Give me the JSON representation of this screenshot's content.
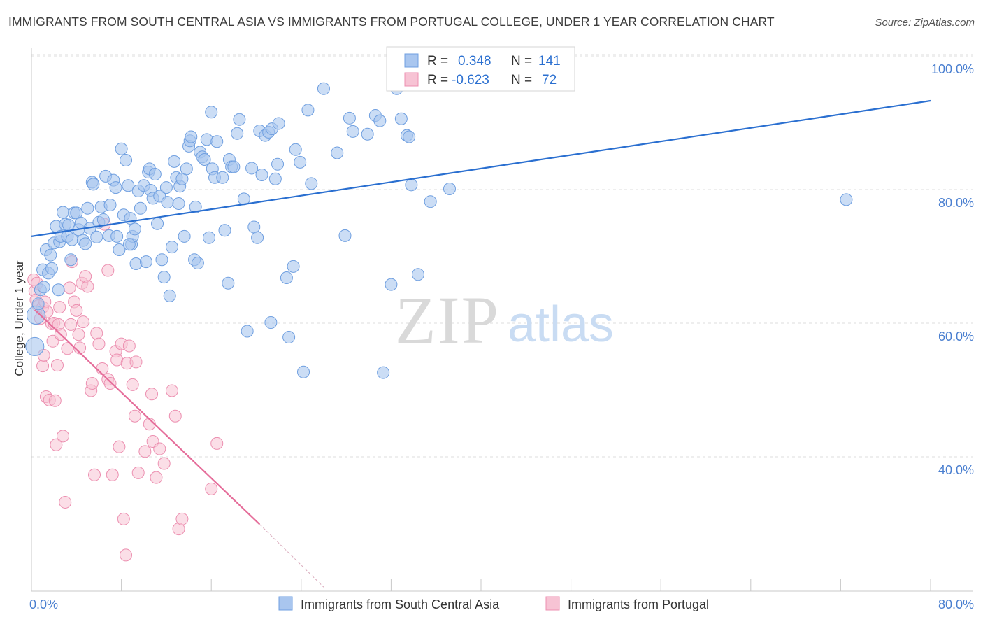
{
  "title": "IMMIGRANTS FROM SOUTH CENTRAL ASIA VS IMMIGRANTS FROM PORTUGAL COLLEGE, UNDER 1 YEAR CORRELATION CHART",
  "source": "Source: ZipAtlas.com",
  "watermark": {
    "zip": "ZIP",
    "atlas": "atlas"
  },
  "colors": {
    "blue_fill": "#a9c6ef",
    "blue_stroke": "#6f9fe0",
    "blue_line": "#2a6fd0",
    "pink_fill": "#f7c3d4",
    "pink_stroke": "#ec8fb0",
    "pink_line": "#e56d9a",
    "grid": "#dcdcdc",
    "tick_label": "#4a7fd0"
  },
  "legend": {
    "rows": [
      {
        "r_label": "R =",
        "r_value": "0.348",
        "n_label": "N =",
        "n_value": "141"
      },
      {
        "r_label": "R =",
        "r_value": "-0.623",
        "n_label": "N =",
        "n_value": "72"
      }
    ]
  },
  "chart_data": {
    "type": "scatter",
    "title": "IMMIGRANTS FROM SOUTH CENTRAL ASIA VS IMMIGRANTS FROM PORTUGAL COLLEGE, UNDER 1 YEAR CORRELATION CHART",
    "xlabel": "",
    "ylabel": "College, Under 1 year",
    "xlim": [
      0,
      80
    ],
    "ylim": [
      20,
      103
    ],
    "x_ticks": [
      "0.0%",
      "80.0%"
    ],
    "y_ticks": [
      {
        "value": 40,
        "label": "40.0%"
      },
      {
        "value": 60,
        "label": "60.0%"
      },
      {
        "value": 80,
        "label": "80.0%"
      },
      {
        "value": 100,
        "label": "100.0%"
      }
    ],
    "grid": true,
    "legend_position": "top-center",
    "series": [
      {
        "name": "Immigrants from South Central Asia",
        "color": "#a9c6ef",
        "r": 0.348,
        "n": 141,
        "trend": {
          "x": [
            0,
            80
          ],
          "y": [
            73.0,
            93.3
          ]
        },
        "points": [
          [
            0.3,
            56.5
          ],
          [
            0.4,
            61.2
          ],
          [
            0.6,
            62.9
          ],
          [
            0.8,
            65.0
          ],
          [
            1.0,
            68.0
          ],
          [
            1.1,
            65.4
          ],
          [
            1.3,
            71.0
          ],
          [
            1.5,
            67.5
          ],
          [
            1.7,
            70.2
          ],
          [
            1.8,
            68.2
          ],
          [
            2.0,
            72.0
          ],
          [
            2.2,
            74.5
          ],
          [
            2.4,
            65.0
          ],
          [
            2.5,
            72.2
          ],
          [
            2.6,
            73.0
          ],
          [
            2.8,
            76.6
          ],
          [
            3.0,
            74.8
          ],
          [
            3.2,
            73.0
          ],
          [
            3.3,
            74.7
          ],
          [
            3.5,
            69.5
          ],
          [
            3.6,
            72.5
          ],
          [
            3.8,
            76.5
          ],
          [
            4.0,
            76.5
          ],
          [
            4.2,
            74.0
          ],
          [
            4.4,
            75.0
          ],
          [
            4.6,
            72.4
          ],
          [
            4.8,
            71.9
          ],
          [
            5.0,
            77.2
          ],
          [
            5.2,
            74.2
          ],
          [
            5.4,
            81.1
          ],
          [
            5.5,
            80.8
          ],
          [
            5.8,
            72.9
          ],
          [
            6.0,
            75.1
          ],
          [
            6.2,
            77.4
          ],
          [
            6.4,
            75.5
          ],
          [
            6.6,
            82.0
          ],
          [
            6.9,
            73.1
          ],
          [
            7.0,
            77.7
          ],
          [
            7.3,
            81.4
          ],
          [
            7.5,
            80.3
          ],
          [
            7.6,
            73.0
          ],
          [
            7.8,
            71.0
          ],
          [
            8.0,
            86.1
          ],
          [
            8.2,
            76.2
          ],
          [
            8.4,
            84.4
          ],
          [
            8.6,
            80.6
          ],
          [
            8.8,
            75.7
          ],
          [
            8.9,
            71.8
          ],
          [
            9.0,
            73.0
          ],
          [
            9.2,
            74.1
          ],
          [
            9.3,
            68.9
          ],
          [
            9.5,
            79.8
          ],
          [
            9.7,
            77.2
          ],
          [
            10.0,
            80.6
          ],
          [
            10.2,
            69.2
          ],
          [
            10.4,
            82.6
          ],
          [
            10.5,
            83.1
          ],
          [
            10.6,
            79.9
          ],
          [
            10.8,
            78.7
          ],
          [
            11.0,
            82.3
          ],
          [
            11.2,
            74.9
          ],
          [
            11.4,
            79.0
          ],
          [
            11.6,
            69.5
          ],
          [
            11.8,
            66.9
          ],
          [
            12.0,
            80.3
          ],
          [
            12.1,
            78.1
          ],
          [
            12.3,
            64.1
          ],
          [
            12.5,
            71.4
          ],
          [
            12.7,
            84.2
          ],
          [
            12.9,
            81.8
          ],
          [
            13.1,
            77.9
          ],
          [
            13.2,
            80.5
          ],
          [
            13.4,
            81.6
          ],
          [
            13.6,
            73.0
          ],
          [
            13.8,
            83.1
          ],
          [
            14.0,
            86.5
          ],
          [
            14.1,
            87.3
          ],
          [
            14.2,
            87.9
          ],
          [
            14.5,
            69.5
          ],
          [
            14.6,
            77.4
          ],
          [
            14.8,
            69.0
          ],
          [
            15.0,
            85.6
          ],
          [
            15.2,
            84.9
          ],
          [
            15.4,
            84.5
          ],
          [
            15.6,
            87.5
          ],
          [
            15.8,
            72.8
          ],
          [
            16.0,
            91.6
          ],
          [
            16.1,
            83.1
          ],
          [
            16.3,
            81.8
          ],
          [
            16.5,
            87.2
          ],
          [
            17.0,
            81.8
          ],
          [
            17.2,
            73.9
          ],
          [
            17.5,
            66.0
          ],
          [
            17.6,
            84.5
          ],
          [
            17.8,
            83.4
          ],
          [
            18.0,
            83.4
          ],
          [
            18.3,
            88.4
          ],
          [
            18.5,
            90.5
          ],
          [
            18.9,
            78.6
          ],
          [
            19.6,
            83.2
          ],
          [
            19.8,
            74.4
          ],
          [
            20.1,
            72.8
          ],
          [
            20.3,
            88.8
          ],
          [
            20.5,
            82.2
          ],
          [
            20.8,
            88.1
          ],
          [
            21.1,
            88.6
          ],
          [
            21.3,
            60.1
          ],
          [
            21.4,
            89.1
          ],
          [
            21.7,
            81.6
          ],
          [
            21.9,
            83.8
          ],
          [
            22.0,
            89.9
          ],
          [
            22.7,
            66.8
          ],
          [
            23.5,
            86.0
          ],
          [
            23.9,
            84.1
          ],
          [
            24.2,
            52.7
          ],
          [
            24.6,
            91.9
          ],
          [
            24.9,
            80.9
          ],
          [
            26.0,
            95.1
          ],
          [
            27.2,
            85.5
          ],
          [
            27.9,
            73.1
          ],
          [
            28.3,
            90.7
          ],
          [
            28.6,
            88.7
          ],
          [
            29.9,
            88.3
          ],
          [
            30.6,
            91.1
          ],
          [
            31.0,
            90.3
          ],
          [
            31.3,
            52.6
          ],
          [
            32.0,
            65.8
          ],
          [
            32.5,
            95.1
          ],
          [
            32.9,
            90.6
          ],
          [
            33.4,
            88.1
          ],
          [
            33.6,
            87.9
          ],
          [
            33.8,
            80.7
          ],
          [
            34.4,
            67.3
          ],
          [
            35.5,
            78.2
          ],
          [
            37.2,
            80.1
          ],
          [
            72.5,
            78.5
          ],
          [
            23.3,
            68.5
          ],
          [
            22.9,
            57.9
          ],
          [
            19.2,
            58.8
          ],
          [
            8.7,
            71.8
          ]
        ]
      },
      {
        "name": "Immigrants from Portugal",
        "color": "#f7c3d4",
        "r": -0.623,
        "n": 72,
        "trend": {
          "x": [
            0.3,
            20.3
          ],
          "y": [
            62.0,
            29.9
          ]
        },
        "trend_dashed": {
          "x": [
            20.3,
            26.0
          ],
          "y": [
            29.9,
            20.5
          ]
        },
        "points": [
          [
            0.2,
            66.5
          ],
          [
            0.3,
            64.8
          ],
          [
            0.4,
            63.5
          ],
          [
            0.5,
            66.0
          ],
          [
            0.6,
            62.6
          ],
          [
            0.8,
            60.7
          ],
          [
            1.0,
            62.4
          ],
          [
            1.0,
            53.6
          ],
          [
            1.1,
            55.2
          ],
          [
            1.2,
            63.2
          ],
          [
            1.3,
            49.0
          ],
          [
            1.4,
            61.7
          ],
          [
            1.6,
            48.5
          ],
          [
            1.8,
            59.9
          ],
          [
            1.9,
            57.3
          ],
          [
            2.0,
            60.0
          ],
          [
            2.1,
            48.4
          ],
          [
            2.2,
            41.8
          ],
          [
            2.3,
            53.7
          ],
          [
            2.4,
            59.8
          ],
          [
            2.5,
            62.4
          ],
          [
            2.6,
            58.3
          ],
          [
            2.8,
            43.1
          ],
          [
            3.0,
            33.2
          ],
          [
            3.2,
            56.2
          ],
          [
            3.4,
            65.3
          ],
          [
            3.5,
            59.8
          ],
          [
            3.6,
            69.2
          ],
          [
            3.8,
            63.2
          ],
          [
            4.0,
            61.9
          ],
          [
            4.2,
            58.3
          ],
          [
            4.3,
            56.3
          ],
          [
            4.5,
            66.0
          ],
          [
            4.8,
            67.0
          ],
          [
            5.0,
            65.5
          ],
          [
            5.3,
            49.9
          ],
          [
            5.4,
            51.0
          ],
          [
            5.6,
            37.3
          ],
          [
            5.8,
            58.5
          ],
          [
            6.0,
            56.9
          ],
          [
            6.3,
            53.2
          ],
          [
            6.5,
            74.8
          ],
          [
            6.8,
            51.6
          ],
          [
            7.0,
            51.0
          ],
          [
            7.2,
            37.3
          ],
          [
            7.5,
            55.8
          ],
          [
            7.6,
            54.5
          ],
          [
            7.8,
            41.5
          ],
          [
            8.0,
            56.9
          ],
          [
            8.2,
            30.7
          ],
          [
            8.4,
            25.3
          ],
          [
            8.5,
            54.0
          ],
          [
            8.7,
            56.6
          ],
          [
            9.0,
            50.8
          ],
          [
            9.2,
            46.1
          ],
          [
            9.3,
            54.2
          ],
          [
            9.5,
            37.6
          ],
          [
            10.1,
            40.8
          ],
          [
            10.5,
            44.9
          ],
          [
            10.8,
            42.3
          ],
          [
            11.1,
            36.9
          ],
          [
            11.4,
            41.2
          ],
          [
            11.8,
            39.0
          ],
          [
            12.5,
            49.9
          ],
          [
            12.8,
            46.1
          ],
          [
            13.1,
            29.2
          ],
          [
            13.4,
            30.7
          ],
          [
            16.0,
            35.2
          ],
          [
            16.5,
            42.0
          ],
          [
            10.7,
            49.4
          ],
          [
            6.8,
            67.9
          ],
          [
            4.6,
            60.2
          ]
        ]
      }
    ]
  },
  "bottom_legend": {
    "items": [
      {
        "label": "Immigrants from South Central Asia"
      },
      {
        "label": "Immigrants from Portugal"
      }
    ]
  }
}
